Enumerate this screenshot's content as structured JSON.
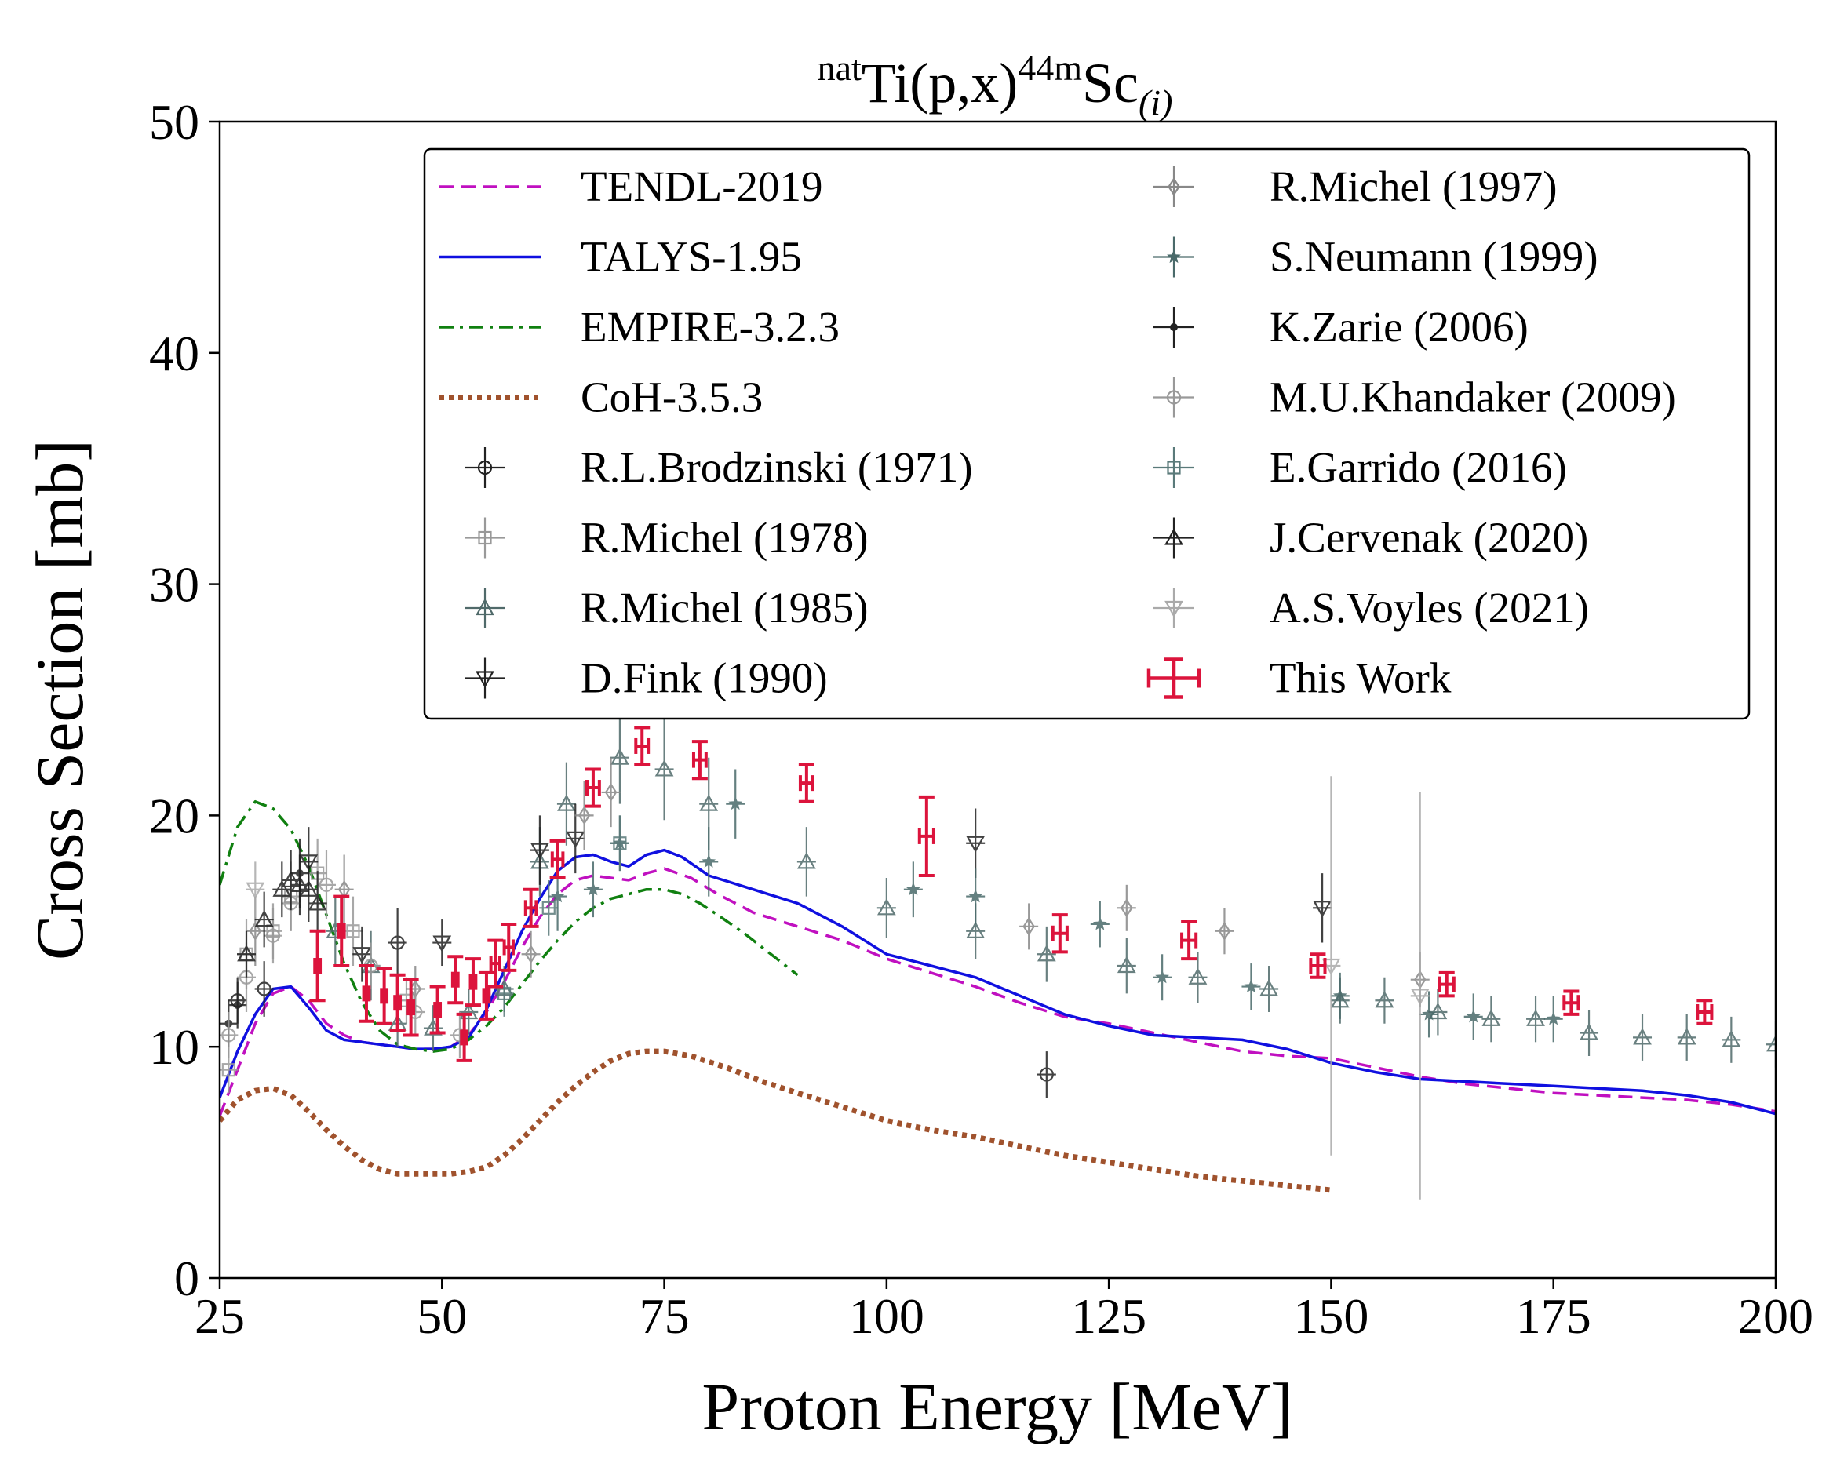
{
  "chart_data": {
    "type": "scatter",
    "title": {
      "pre": "nat",
      "main": "Ti(p,x)",
      "sup": "44m",
      "base": "Sc",
      "sub": "(i)"
    },
    "xlabel": "Proton Energy [MeV]",
    "ylabel": "Cross Section [mb]",
    "xlim": [
      25,
      200
    ],
    "ylim": [
      0,
      50
    ],
    "xticks": [
      25,
      50,
      75,
      100,
      125,
      150,
      175,
      200
    ],
    "yticks": [
      0,
      10,
      20,
      30,
      40,
      50
    ],
    "legend_position": "upper-right",
    "curves": [
      {
        "name": "TENDL-2019",
        "style": "dashed",
        "color": "#c010c0",
        "x": [
          25,
          27,
          29,
          31,
          33,
          35,
          37,
          39,
          41,
          43,
          45,
          47,
          49,
          51,
          53,
          55,
          57,
          59,
          61,
          63,
          65,
          67,
          69,
          71,
          73,
          75,
          78,
          81,
          85,
          90,
          95,
          100,
          105,
          110,
          115,
          120,
          125,
          130,
          135,
          140,
          145,
          150,
          155,
          160,
          165,
          170,
          175,
          180,
          185,
          190,
          195,
          200
        ],
        "y": [
          7.0,
          9.0,
          11.0,
          12.3,
          12.6,
          12.0,
          11.0,
          10.5,
          10.2,
          10.1,
          10.0,
          9.9,
          9.9,
          10.0,
          10.5,
          11.5,
          12.8,
          14.3,
          15.6,
          16.6,
          17.2,
          17.4,
          17.3,
          17.2,
          17.5,
          17.7,
          17.3,
          16.6,
          15.8,
          15.2,
          14.6,
          13.8,
          13.2,
          12.6,
          11.9,
          11.3,
          11.0,
          10.6,
          10.2,
          9.8,
          9.6,
          9.5,
          9.1,
          8.7,
          8.4,
          8.2,
          8.0,
          7.9,
          7.8,
          7.7,
          7.5,
          7.2
        ]
      },
      {
        "name": "TALYS-1.95",
        "style": "solid",
        "color": "#1010e0",
        "x": [
          25,
          27,
          29,
          31,
          33,
          35,
          37,
          39,
          41,
          43,
          45,
          47,
          49,
          51,
          53,
          55,
          57,
          59,
          61,
          63,
          65,
          67,
          69,
          71,
          73,
          75,
          77,
          80,
          85,
          90,
          95,
          100,
          105,
          110,
          115,
          120,
          125,
          130,
          135,
          140,
          145,
          150,
          155,
          160,
          165,
          170,
          175,
          180,
          185,
          190,
          195,
          200
        ],
        "y": [
          7.8,
          9.8,
          11.4,
          12.5,
          12.6,
          11.7,
          10.7,
          10.3,
          10.2,
          10.1,
          10.0,
          9.9,
          9.9,
          10.0,
          10.4,
          11.6,
          13.3,
          15.0,
          16.4,
          17.6,
          18.2,
          18.3,
          18.0,
          17.8,
          18.3,
          18.5,
          18.2,
          17.4,
          16.8,
          16.2,
          15.2,
          14.0,
          13.5,
          13.0,
          12.2,
          11.4,
          10.9,
          10.5,
          10.4,
          10.3,
          9.9,
          9.3,
          8.9,
          8.6,
          8.5,
          8.4,
          8.3,
          8.2,
          8.1,
          7.9,
          7.6,
          7.1
        ]
      },
      {
        "name": "EMPIRE-3.2.3",
        "style": "dashdot",
        "color": "#108010",
        "x": [
          25,
          27,
          29,
          31,
          33,
          35,
          37,
          39,
          41,
          43,
          45,
          47,
          49,
          51,
          53,
          55,
          57,
          59,
          61,
          63,
          65,
          67,
          69,
          71,
          73,
          75,
          77,
          79,
          81,
          84,
          87,
          90
        ],
        "y": [
          17.0,
          19.5,
          20.6,
          20.3,
          19.4,
          17.8,
          15.7,
          13.6,
          11.9,
          10.7,
          10.1,
          9.9,
          9.8,
          9.9,
          10.3,
          10.9,
          11.7,
          12.7,
          13.7,
          14.6,
          15.4,
          16.0,
          16.4,
          16.6,
          16.8,
          16.8,
          16.6,
          16.2,
          15.7,
          14.9,
          14.0,
          13.1
        ]
      },
      {
        "name": "CoH-3.5.3",
        "style": "dotted",
        "color": "#a0522d",
        "x": [
          25,
          27,
          29,
          31,
          33,
          35,
          37,
          39,
          41,
          43,
          45,
          47,
          49,
          51,
          53,
          55,
          57,
          59,
          61,
          63,
          65,
          67,
          69,
          71,
          73,
          75,
          78,
          82,
          86,
          90,
          95,
          100,
          105,
          110,
          115,
          120,
          125,
          130,
          135,
          140,
          145,
          150
        ],
        "y": [
          6.8,
          7.7,
          8.1,
          8.2,
          7.9,
          7.2,
          6.4,
          5.7,
          5.1,
          4.7,
          4.5,
          4.5,
          4.5,
          4.5,
          4.6,
          4.8,
          5.3,
          6.0,
          6.8,
          7.6,
          8.3,
          8.9,
          9.4,
          9.7,
          9.8,
          9.8,
          9.6,
          9.1,
          8.5,
          8.0,
          7.4,
          6.8,
          6.4,
          6.1,
          5.7,
          5.3,
          5.0,
          4.7,
          4.4,
          4.2,
          4.0,
          3.8
        ]
      }
    ],
    "series": [
      {
        "name": "R.L.Brodzinski (1971)",
        "marker": "circle",
        "color": "#222222",
        "points": [
          [
            27,
            12.0,
            1.0
          ],
          [
            30,
            12.5,
            1.2
          ],
          [
            45,
            14.5,
            1.5
          ],
          [
            118,
            8.8,
            1.0
          ]
        ]
      },
      {
        "name": "R.Michel (1978)",
        "marker": "square",
        "color": "#999999",
        "points": [
          [
            26,
            9.0,
            1.0
          ],
          [
            28,
            14.0,
            1.5
          ],
          [
            31,
            15.0,
            1.2
          ],
          [
            33,
            16.5,
            1.5
          ],
          [
            36,
            17.5,
            1.5
          ],
          [
            40,
            15.0,
            1.5
          ],
          [
            46,
            12.0,
            1.0
          ]
        ]
      },
      {
        "name": "R.Michel (1985)",
        "marker": "triangle-up",
        "color": "#506a6a",
        "points": [
          [
            38,
            15.0,
            1.5
          ],
          [
            42,
            13.5,
            1.5
          ],
          [
            45,
            11.0,
            1.0
          ],
          [
            49,
            10.8,
            1.0
          ],
          [
            53,
            11.5,
            1.0
          ],
          [
            57,
            12.5,
            1.0
          ],
          [
            61,
            18.0,
            1.5
          ],
          [
            64,
            20.5,
            1.8
          ],
          [
            70,
            22.5,
            2.0
          ],
          [
            75,
            22.0,
            2.2
          ],
          [
            80,
            20.5,
            2.0
          ],
          [
            91,
            18.0,
            1.5
          ],
          [
            100,
            16.0,
            1.3
          ],
          [
            110,
            15.0,
            1.2
          ],
          [
            118,
            14.0,
            1.2
          ],
          [
            127,
            13.5,
            1.2
          ],
          [
            135,
            13.0,
            1.1
          ],
          [
            143,
            12.5,
            1.0
          ],
          [
            151,
            12.0,
            1.0
          ],
          [
            156,
            12.0,
            1.0
          ],
          [
            162,
            11.5,
            1.0
          ],
          [
            168,
            11.2,
            1.0
          ],
          [
            173,
            11.2,
            1.0
          ],
          [
            179,
            10.6,
            1.0
          ],
          [
            185,
            10.4,
            1.0
          ],
          [
            190,
            10.4,
            1.0
          ],
          [
            195,
            10.3,
            1.0
          ],
          [
            200,
            10.1,
            1.0
          ]
        ]
      },
      {
        "name": "D.Fink (1990)",
        "marker": "triangle-down",
        "color": "#222222",
        "points": [
          [
            35,
            18.0,
            1.5
          ],
          [
            41,
            14.0,
            1.2
          ],
          [
            50,
            14.5,
            1.0
          ],
          [
            61,
            18.5,
            1.5
          ],
          [
            65,
            19.0,
            1.5
          ],
          [
            110,
            18.8,
            1.5
          ],
          [
            149,
            16.0,
            1.5
          ]
        ]
      },
      {
        "name": "R.Michel (1997)",
        "marker": "diamond",
        "color": "#888888",
        "points": [
          [
            29,
            15.0,
            1.5
          ],
          [
            39,
            16.8,
            1.5
          ],
          [
            47,
            12.5,
            1.0
          ],
          [
            60,
            14.0,
            1.0
          ],
          [
            66,
            20.0,
            1.5
          ],
          [
            69,
            21.0,
            1.5
          ],
          [
            116,
            15.2,
            1.0
          ],
          [
            127,
            16.0,
            1.0
          ],
          [
            138,
            15.0,
            1.0
          ],
          [
            160,
            12.9,
            1.2
          ]
        ]
      },
      {
        "name": "S.Neumann (1999)",
        "marker": "star",
        "color": "#4a6a6a",
        "points": [
          [
            63,
            16.5,
            1.5
          ],
          [
            67,
            16.8,
            1.2
          ],
          [
            70,
            18.8,
            1.2
          ],
          [
            80,
            18.0,
            1.5
          ],
          [
            83,
            20.5,
            1.5
          ],
          [
            103,
            16.8,
            1.2
          ],
          [
            110,
            16.5,
            1.2
          ],
          [
            124,
            15.3,
            1.0
          ],
          [
            131,
            13.0,
            1.0
          ],
          [
            141,
            12.6,
            1.0
          ],
          [
            151,
            12.2,
            1.0
          ],
          [
            161,
            11.4,
            1.0
          ],
          [
            166,
            11.3,
            1.0
          ],
          [
            175,
            11.2,
            1.0
          ]
        ]
      },
      {
        "name": "K.Zarie (2006)",
        "marker": "dot",
        "color": "#222222",
        "points": [
          [
            26,
            11.0,
            1.0
          ],
          [
            27,
            11.8,
            1.0
          ],
          [
            34,
            17.5,
            1.5
          ]
        ]
      },
      {
        "name": "M.U.Khandaker (2009)",
        "marker": "circle",
        "color": "#999999",
        "points": [
          [
            26,
            10.5,
            1.0
          ],
          [
            28,
            13.0,
            1.5
          ],
          [
            31,
            14.8,
            1.2
          ],
          [
            33,
            16.2,
            1.2
          ],
          [
            37,
            17.0,
            1.5
          ],
          [
            42,
            13.5,
            1.0
          ],
          [
            47,
            11.5,
            1.0
          ],
          [
            52,
            10.5,
            1.0
          ]
        ]
      },
      {
        "name": "E.Garrido (2016)",
        "marker": "square",
        "color": "#5a7a7a",
        "points": [
          [
            57,
            12.3,
            1.0
          ],
          [
            62,
            16.0,
            1.2
          ],
          [
            70,
            18.8,
            1.2
          ]
        ]
      },
      {
        "name": "J.Cervenak (2020)",
        "marker": "triangle-up",
        "color": "#222222",
        "points": [
          [
            28,
            14.0,
            1.0
          ],
          [
            30,
            15.5,
            1.2
          ],
          [
            32,
            16.8,
            1.2
          ],
          [
            33,
            17.2,
            1.3
          ],
          [
            34,
            17.0,
            1.3
          ],
          [
            35,
            16.8,
            1.4
          ],
          [
            36,
            16.2,
            1.4
          ]
        ]
      },
      {
        "name": "A.S.Voyles (2021)",
        "marker": "triangle-down",
        "color": "#aaaaaa",
        "points": [
          [
            29,
            16.8,
            1.2
          ],
          [
            150,
            13.5,
            8.2
          ],
          [
            160,
            12.2,
            8.8
          ]
        ]
      },
      {
        "name": "This Work",
        "marker": "errorbar",
        "color": "#dc143c",
        "points": [
          [
            36.0,
            13.5,
            1.5,
            0.3
          ],
          [
            38.7,
            15.0,
            1.5,
            0.3
          ],
          [
            41.5,
            12.3,
            1.2,
            0.3
          ],
          [
            43.5,
            12.2,
            1.2,
            0.3
          ],
          [
            45.0,
            11.9,
            1.2,
            0.3
          ],
          [
            46.5,
            11.7,
            1.2,
            0.3
          ],
          [
            49.5,
            11.6,
            1.0,
            0.3
          ],
          [
            51.5,
            12.9,
            1.0,
            0.3
          ],
          [
            52.5,
            10.4,
            1.0,
            0.3
          ],
          [
            53.5,
            12.8,
            1.0,
            0.3
          ],
          [
            55.0,
            12.2,
            1.0,
            0.3
          ],
          [
            56.0,
            13.6,
            1.0,
            0.5
          ],
          [
            57.5,
            14.3,
            1.0,
            0.5
          ],
          [
            60.0,
            16.0,
            0.8,
            0.6
          ],
          [
            63.0,
            18.1,
            0.8,
            0.6
          ],
          [
            67.0,
            21.2,
            0.8,
            0.7
          ],
          [
            72.5,
            23.0,
            0.8,
            0.7
          ],
          [
            79.0,
            22.4,
            0.8,
            0.7
          ],
          [
            91.0,
            21.4,
            0.8,
            0.7
          ],
          [
            104.5,
            19.1,
            1.7,
            0.8
          ],
          [
            119.5,
            14.9,
            0.8,
            0.8
          ],
          [
            134.0,
            14.6,
            0.8,
            0.8
          ],
          [
            148.5,
            13.5,
            0.5,
            0.8
          ],
          [
            163.0,
            12.7,
            0.5,
            0.8
          ],
          [
            177.0,
            11.9,
            0.5,
            0.8
          ],
          [
            192.0,
            11.5,
            0.5,
            0.8
          ]
        ]
      }
    ],
    "legend_columns": [
      [
        "TENDL-2019",
        "TALYS-1.95",
        "EMPIRE-3.2.3",
        "CoH-3.5.3",
        "R.L.Brodzinski (1971)",
        "R.Michel (1978)",
        "R.Michel (1985)",
        "D.Fink (1990)"
      ],
      [
        "R.Michel (1997)",
        "S.Neumann (1999)",
        "K.Zarie (2006)",
        "M.U.Khandaker (2009)",
        "E.Garrido (2016)",
        "J.Cervenak (2020)",
        "A.S.Voyles (2021)",
        "This Work"
      ]
    ]
  }
}
